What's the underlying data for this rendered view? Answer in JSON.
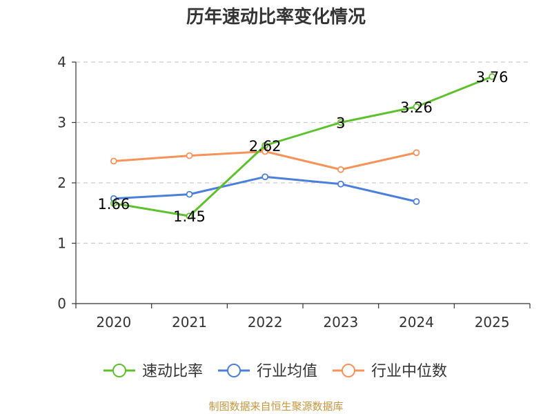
{
  "chart_data": {
    "type": "line",
    "title": "历年速动比率变化情况",
    "categories": [
      "2020",
      "2021",
      "2022",
      "2023",
      "2024",
      "2025"
    ],
    "xlabel": "",
    "ylabel": "",
    "ylim": [
      0,
      4
    ],
    "yticks": [
      "0",
      "1",
      "2",
      "3",
      "4"
    ],
    "grid": true,
    "legend_position": "bottom",
    "series": [
      {
        "name": "速动比率",
        "color": "#5dc12c",
        "values": [
          1.66,
          1.45,
          2.62,
          3.0,
          3.26,
          3.76
        ],
        "labels": [
          "1.66",
          "1.45",
          "2.62",
          "3",
          "3.26",
          "3.76"
        ]
      },
      {
        "name": "行业均值",
        "color": "#4a7fdb",
        "values": [
          1.74,
          1.81,
          2.1,
          1.98,
          1.69,
          null
        ]
      },
      {
        "name": "行业中位数",
        "color": "#f79258",
        "values": [
          2.36,
          2.45,
          2.52,
          2.22,
          2.5,
          null
        ]
      }
    ]
  },
  "source": "制图数据来自恒生聚源数据库"
}
